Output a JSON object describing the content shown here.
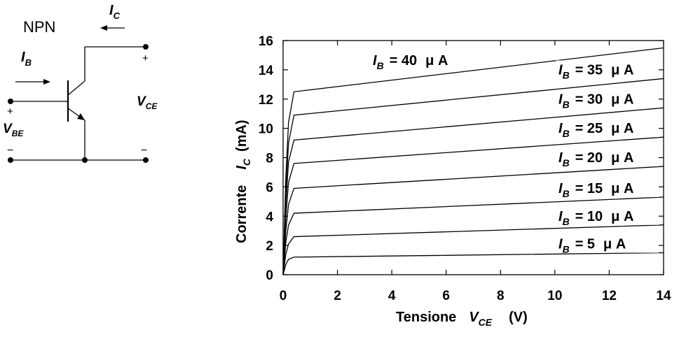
{
  "circuit": {
    "label": "NPN",
    "ic": {
      "sym": "I",
      "sub": "C"
    },
    "ib": {
      "sym": "I",
      "sub": "B"
    },
    "vce": {
      "sym": "V",
      "sub": "CE"
    },
    "vbe": {
      "sym": "V",
      "sub": "BE"
    },
    "plus": "+",
    "minus": "−"
  },
  "chart_data": {
    "type": "line",
    "title": "",
    "xlabel": {
      "text": "Tensione",
      "sym": "V",
      "sub": "CE",
      "unit": "(V)"
    },
    "ylabel": {
      "text": "Corrente",
      "sym": "I",
      "sub": "C",
      "unit": "(mA)"
    },
    "xlim": [
      0,
      14
    ],
    "ylim": [
      0,
      16
    ],
    "xticks": [
      0,
      2,
      4,
      6,
      8,
      10,
      12,
      14
    ],
    "yticks": [
      0,
      2,
      4,
      6,
      8,
      10,
      12,
      14,
      16
    ],
    "grid": false,
    "series": [
      {
        "sym": "I",
        "sub": "B",
        "eq": "=  5",
        "unit": "μ A",
        "x": [
          0,
          0.1,
          0.2,
          0.4,
          14
        ],
        "y": [
          0,
          0.7,
          1.05,
          1.2,
          1.5
        ]
      },
      {
        "sym": "I",
        "sub": "B",
        "eq": "= 10",
        "unit": "μ A",
        "x": [
          0,
          0.1,
          0.2,
          0.4,
          14
        ],
        "y": [
          0,
          1.4,
          2.1,
          2.6,
          3.4
        ]
      },
      {
        "sym": "I",
        "sub": "B",
        "eq": "= 15",
        "unit": "μ A",
        "x": [
          0,
          0.1,
          0.2,
          0.4,
          14
        ],
        "y": [
          0,
          2.2,
          3.4,
          4.2,
          5.3
        ]
      },
      {
        "sym": "I",
        "sub": "B",
        "eq": "= 20",
        "unit": "μ A",
        "x": [
          0,
          0.1,
          0.2,
          0.4,
          14
        ],
        "y": [
          0,
          3.0,
          4.8,
          5.9,
          7.4
        ]
      },
      {
        "sym": "I",
        "sub": "B",
        "eq": "= 25",
        "unit": "μ A",
        "x": [
          0,
          0.1,
          0.2,
          0.4,
          14
        ],
        "y": [
          0,
          3.9,
          6.3,
          7.6,
          9.4
        ]
      },
      {
        "sym": "I",
        "sub": "B",
        "eq": "= 30",
        "unit": "μ A",
        "x": [
          0,
          0.1,
          0.2,
          0.4,
          14
        ],
        "y": [
          0,
          4.8,
          7.7,
          9.2,
          11.4
        ]
      },
      {
        "sym": "I",
        "sub": "B",
        "eq": "= 35",
        "unit": "μ A",
        "x": [
          0,
          0.1,
          0.2,
          0.4,
          14
        ],
        "y": [
          0,
          5.7,
          9.0,
          10.9,
          13.4
        ]
      },
      {
        "sym": "I",
        "sub": "B",
        "eq": "= 40",
        "unit": "μ A",
        "x": [
          0,
          0.1,
          0.2,
          0.4,
          14
        ],
        "y": [
          0,
          6.6,
          10.4,
          12.5,
          15.5
        ]
      }
    ]
  }
}
